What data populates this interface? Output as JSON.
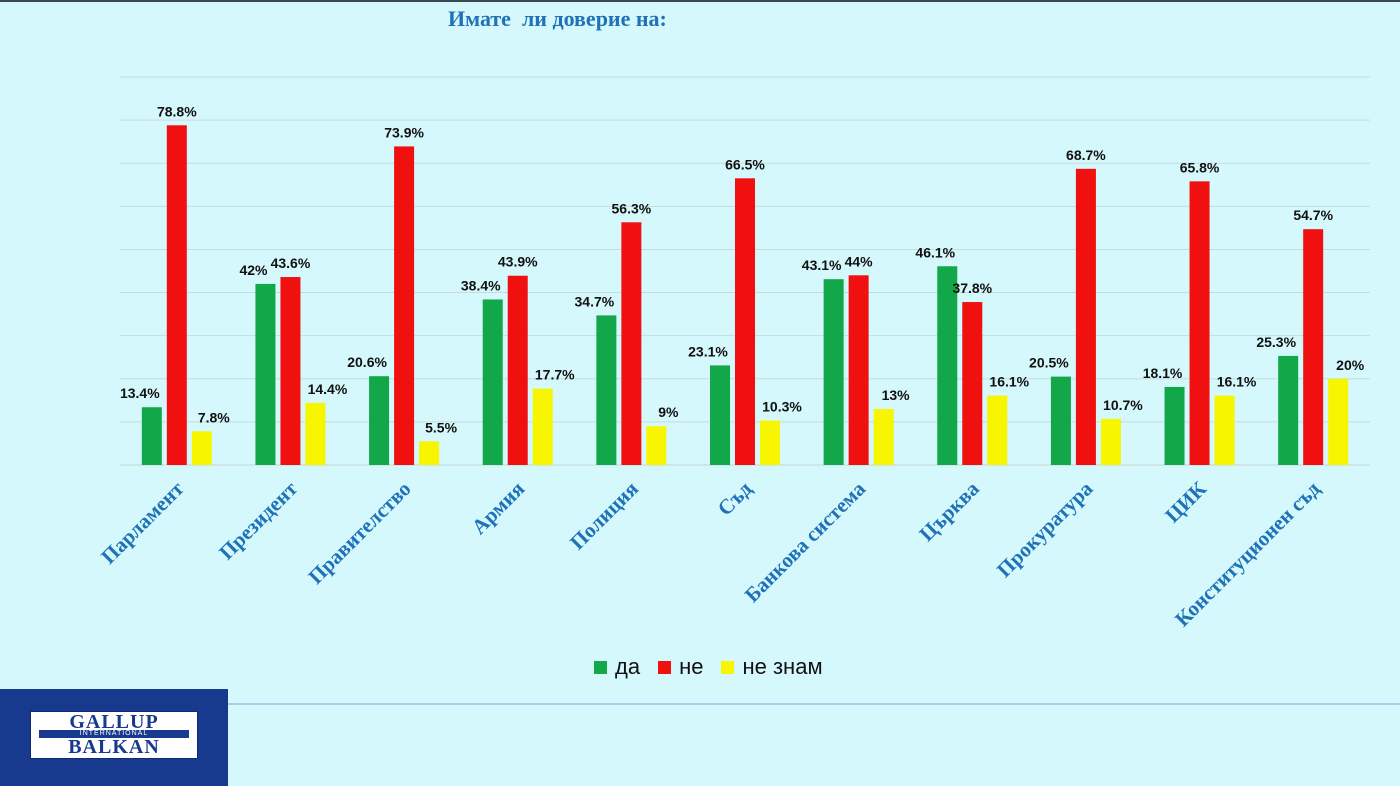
{
  "title": "Имате  ли доверие на:",
  "colors": {
    "yes": "#12a84a",
    "no": "#f01010",
    "dontknow": "#f7f500",
    "label": "#1f72b8"
  },
  "legend": [
    {
      "label": "да",
      "color": "#12a84a"
    },
    {
      "label": "не",
      "color": "#f01010"
    },
    {
      "label": "не знам",
      "color": "#f7f500"
    }
  ],
  "logo": {
    "line1": "GALLUP",
    "line2": "INTERNATIONAL",
    "line3": "BALKAN"
  },
  "chart_data": {
    "type": "bar",
    "title": "Имате  ли доверие на:",
    "categories": [
      "Парламент",
      "Президент",
      "Правителство",
      "Армия",
      "Полиция",
      "Съд",
      "Банкова система",
      "Църква",
      "Прокуратура",
      "ЦИК",
      "Конституционен съд"
    ],
    "series": [
      {
        "name": "да",
        "color": "#12a84a",
        "values": [
          13.4,
          42,
          20.6,
          38.4,
          34.7,
          23.1,
          43.1,
          46.1,
          20.5,
          18.1,
          25.3
        ],
        "labels": [
          "13.4%",
          "42%",
          "20.6%",
          "38.4%",
          "34.7%",
          "23.1%",
          "43.1%",
          "46.1%",
          "20.5%",
          "18.1%",
          "25.3%"
        ]
      },
      {
        "name": "не",
        "color": "#f01010",
        "values": [
          78.8,
          43.6,
          73.9,
          43.9,
          56.3,
          66.5,
          44,
          37.8,
          68.7,
          65.8,
          54.7
        ],
        "labels": [
          "78.8%",
          "43.6%",
          "73.9%",
          "43.9%",
          "56.3%",
          "66.5%",
          "44%",
          "37.8%",
          "68.7%",
          "65.8%",
          "54.7%"
        ]
      },
      {
        "name": "не знам",
        "color": "#f7f500",
        "values": [
          7.8,
          14.4,
          5.5,
          17.7,
          9,
          10.3,
          13,
          16.1,
          10.7,
          16.1,
          20
        ],
        "labels": [
          "7.8%",
          "14.4%",
          "5.5%",
          "17.7%",
          "9%",
          "10.3%",
          "13%",
          "16.1%",
          "10.7%",
          "16.1%",
          "20%"
        ]
      }
    ],
    "ylim": [
      0,
      90
    ],
    "grid": true,
    "legend_position": "bottom"
  }
}
